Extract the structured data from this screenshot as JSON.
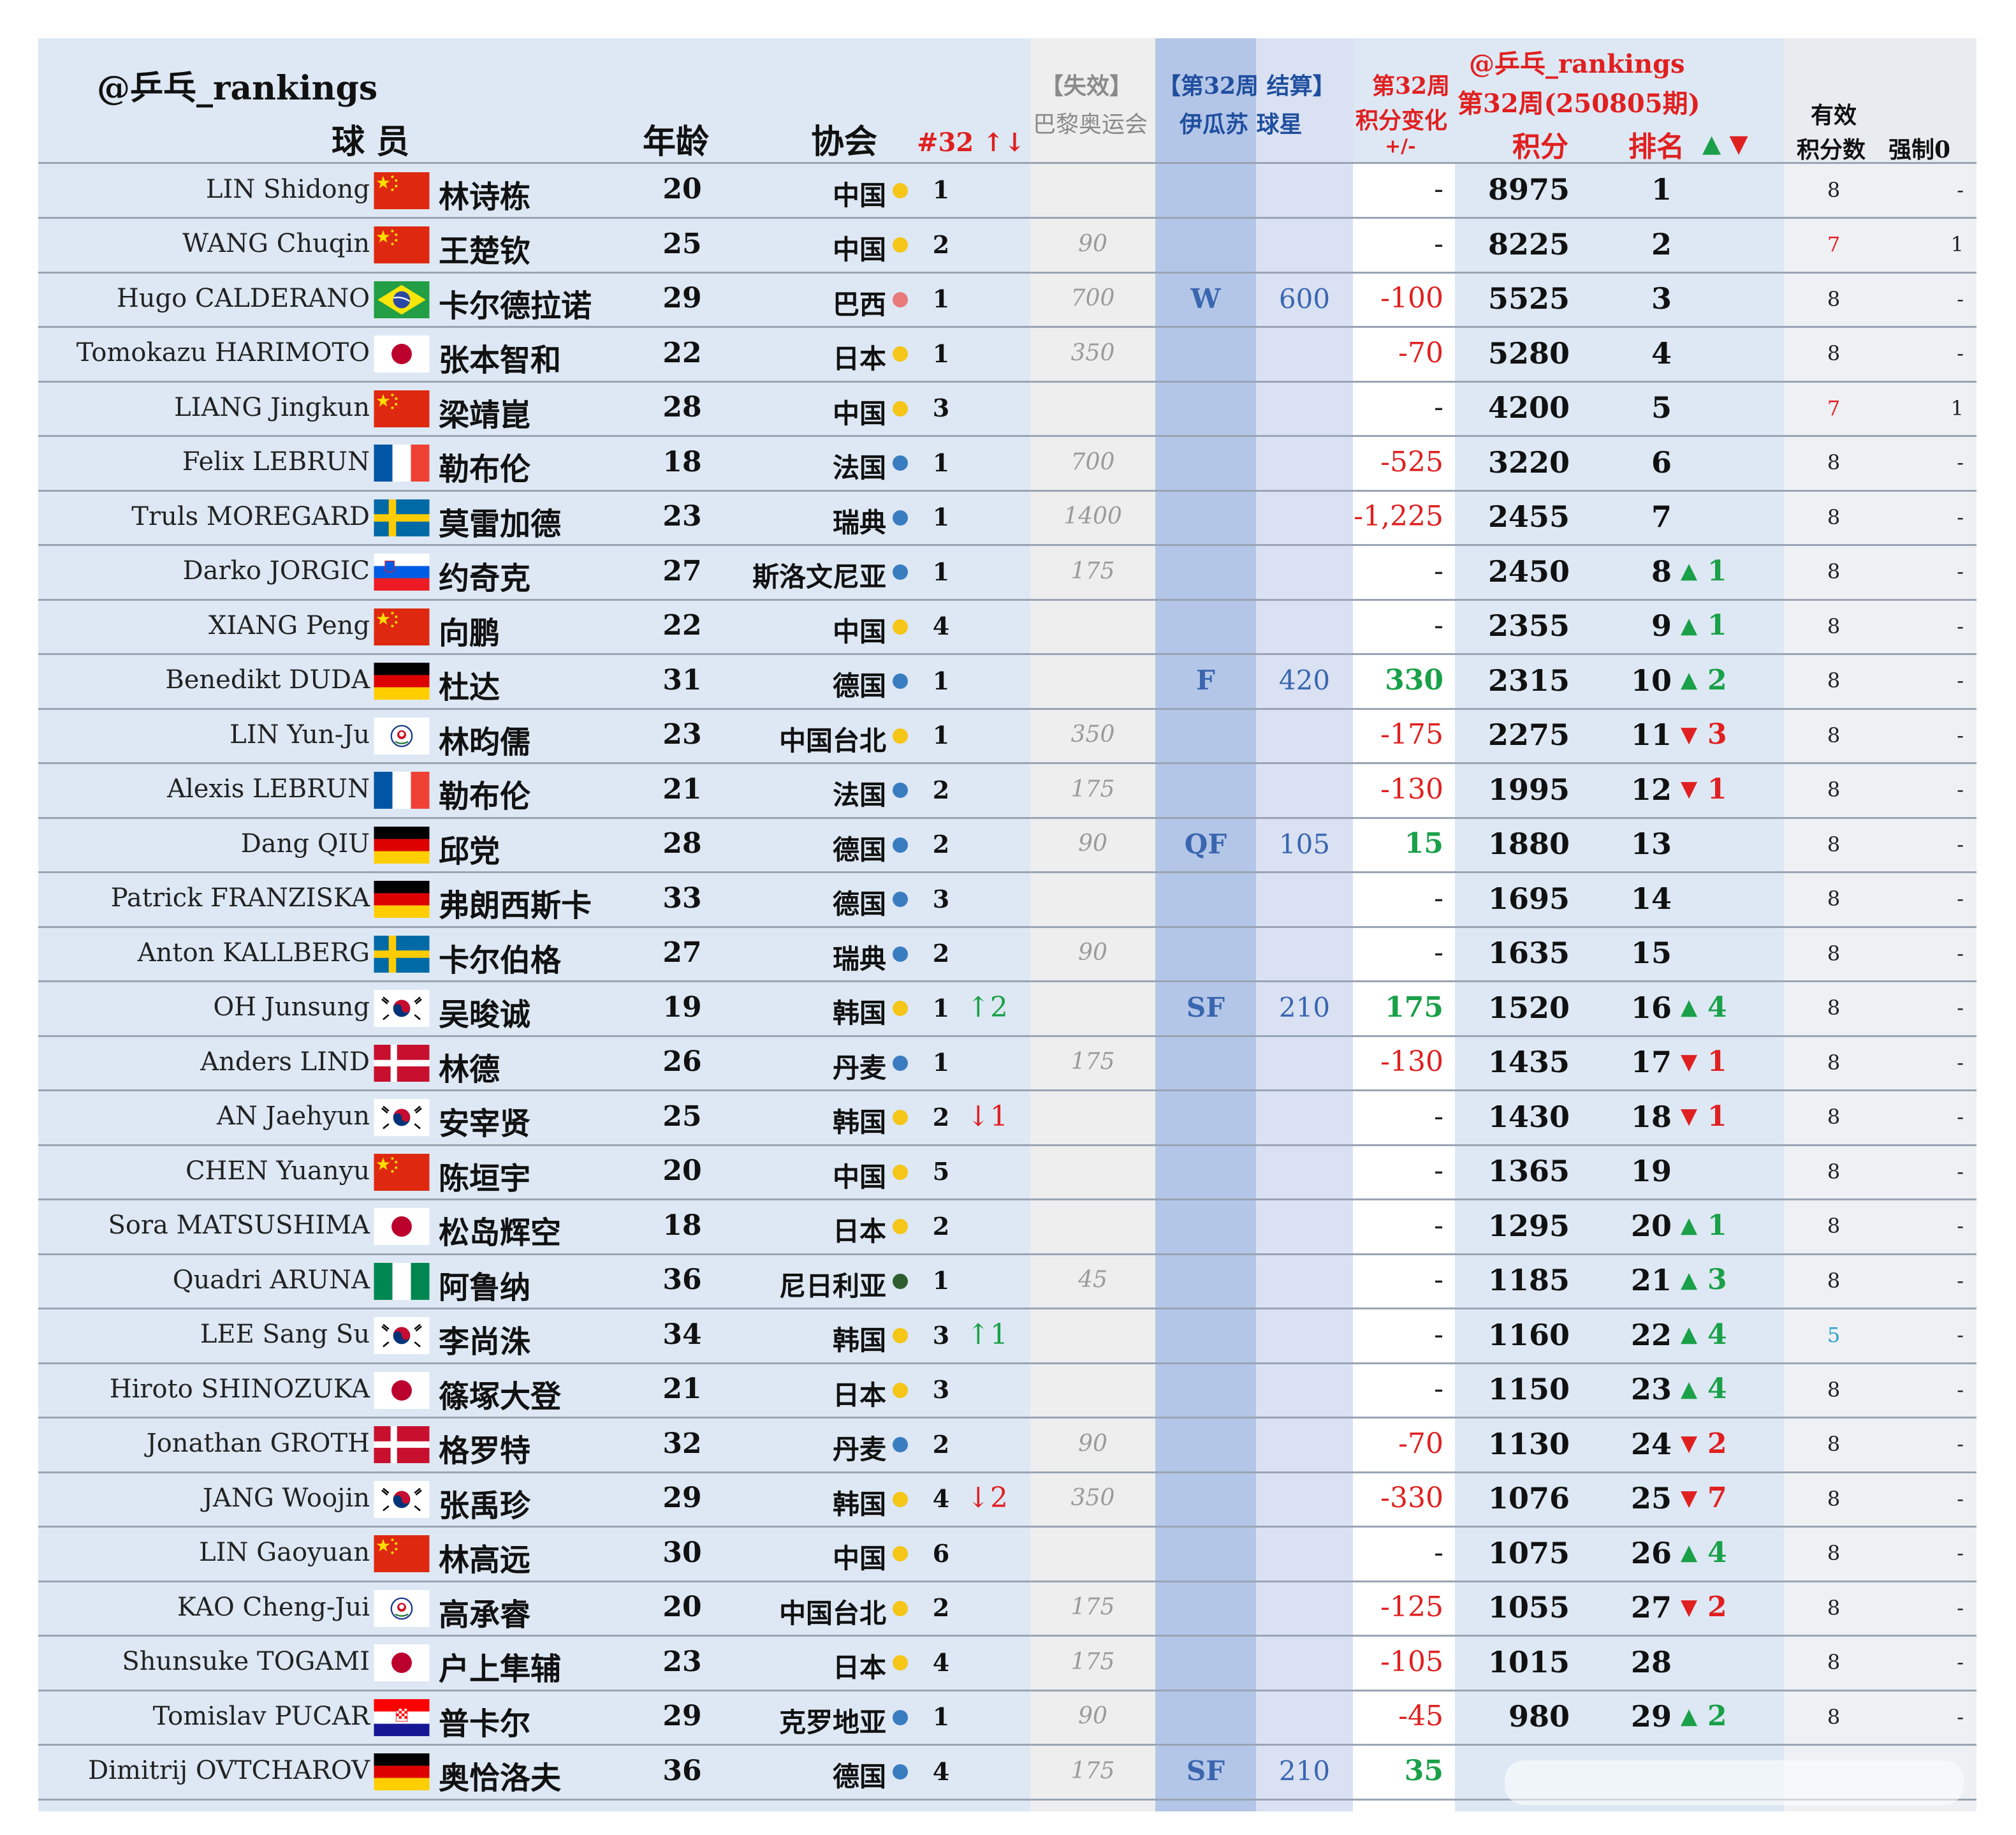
{
  "header": {
    "watermark_left": "@乒乓_rankings",
    "col_player": "球 员",
    "col_age": "年龄",
    "col_assoc": "协会",
    "col_rank_change": "#32 ↑↓",
    "col_expired_top": "【失效】",
    "col_expired_bottom": "巴黎奥运会",
    "col_event_top": "【第32周 结算】",
    "col_event_bottom": "伊瓜苏 球星",
    "col_change_top": "第32周",
    "col_change_mid": "积分变化",
    "col_change_bottom": "+/-",
    "col_week_watermark": "@乒乓_rankings",
    "col_week_title": "第32周(250805期)",
    "col_points": "积分",
    "col_rank": "排名",
    "col_rank_arrows": "▲ ▼",
    "col_valid_top": "有效",
    "col_valid_bottom": "积分数",
    "col_forced": "强制0"
  },
  "colors": {
    "header_bg": "#dde8f4",
    "row_bg": "#dde8f4",
    "expired_bg": "#eeeeee",
    "event_bg": "#b4c6e7",
    "event_bg2": "#d9e1f2",
    "up": "#1aa048",
    "down": "#e02020",
    "china_dot": "#f5c518",
    "europe_dot": "#3a7cc0",
    "brazil_dot": "#e87a7a",
    "nigeria_dot": "#2e5e2e"
  },
  "rows": [
    {
      "en": "LIN Shidong",
      "flag": "china",
      "cn": "林诗栋",
      "age": "20",
      "assoc": "中国",
      "dot": "yellow",
      "nat_rank": "1",
      "nat_change": "",
      "nat_dir": "",
      "expired": "",
      "event_result": "",
      "event_pts": "",
      "change": "-",
      "change_style": "plain",
      "points": "8975",
      "rank": "1",
      "rank_dir": "",
      "rank_delta": "",
      "valid": "8",
      "valid_style": "plain",
      "forced": "-"
    },
    {
      "en": "WANG Chuqin",
      "flag": "china",
      "cn": "王楚钦",
      "age": "25",
      "assoc": "中国",
      "dot": "yellow",
      "nat_rank": "2",
      "nat_change": "",
      "nat_dir": "",
      "expired": "90",
      "event_result": "",
      "event_pts": "",
      "change": "-",
      "change_style": "plain",
      "points": "8225",
      "rank": "2",
      "rank_dir": "",
      "rank_delta": "",
      "valid": "7",
      "valid_style": "red",
      "forced": "1"
    },
    {
      "en": "Hugo CALDERANO",
      "flag": "brazil",
      "cn": "卡尔德拉诺",
      "age": "29",
      "assoc": "巴西",
      "dot": "pink",
      "nat_rank": "1",
      "nat_change": "",
      "nat_dir": "",
      "expired": "700",
      "event_result": "W",
      "event_pts": "600",
      "change": "-100",
      "change_style": "red",
      "points": "5525",
      "rank": "3",
      "rank_dir": "",
      "rank_delta": "",
      "valid": "8",
      "valid_style": "plain",
      "forced": "-"
    },
    {
      "en": "Tomokazu HARIMOTO",
      "flag": "japan",
      "cn": "张本智和",
      "age": "22",
      "assoc": "日本",
      "dot": "yellow",
      "nat_rank": "1",
      "nat_change": "",
      "nat_dir": "",
      "expired": "350",
      "event_result": "",
      "event_pts": "",
      "change": "-70",
      "change_style": "red",
      "points": "5280",
      "rank": "4",
      "rank_dir": "",
      "rank_delta": "",
      "valid": "8",
      "valid_style": "plain",
      "forced": "-"
    },
    {
      "en": "LIANG Jingkun",
      "flag": "china",
      "cn": "梁靖崑",
      "age": "28",
      "assoc": "中国",
      "dot": "yellow",
      "nat_rank": "3",
      "nat_change": "",
      "nat_dir": "",
      "expired": "",
      "event_result": "",
      "event_pts": "",
      "change": "-",
      "change_style": "plain",
      "points": "4200",
      "rank": "5",
      "rank_dir": "",
      "rank_delta": "",
      "valid": "7",
      "valid_style": "red",
      "forced": "1"
    },
    {
      "en": "Felix LEBRUN",
      "flag": "france",
      "cn": "勒布伦",
      "age": "18",
      "assoc": "法国",
      "dot": "blue",
      "nat_rank": "1",
      "nat_change": "",
      "nat_dir": "",
      "expired": "700",
      "event_result": "",
      "event_pts": "",
      "change": "-525",
      "change_style": "red",
      "points": "3220",
      "rank": "6",
      "rank_dir": "",
      "rank_delta": "",
      "valid": "8",
      "valid_style": "plain",
      "forced": "-"
    },
    {
      "en": "Truls MOREGARD",
      "flag": "sweden",
      "cn": "莫雷加德",
      "age": "23",
      "assoc": "瑞典",
      "dot": "blue",
      "nat_rank": "1",
      "nat_change": "",
      "nat_dir": "",
      "expired": "1400",
      "event_result": "",
      "event_pts": "",
      "change": "-1,225",
      "change_style": "red",
      "points": "2455",
      "rank": "7",
      "rank_dir": "",
      "rank_delta": "",
      "valid": "8",
      "valid_style": "plain",
      "forced": "-"
    },
    {
      "en": "Darko JORGIC",
      "flag": "slovenia",
      "cn": "约奇克",
      "age": "27",
      "assoc": "斯洛文尼亚",
      "dot": "blue",
      "nat_rank": "1",
      "nat_change": "",
      "nat_dir": "",
      "expired": "175",
      "event_result": "",
      "event_pts": "",
      "change": "-",
      "change_style": "plain",
      "points": "2450",
      "rank": "8",
      "rank_dir": "up",
      "rank_delta": "1",
      "valid": "8",
      "valid_style": "plain",
      "forced": "-"
    },
    {
      "en": "XIANG Peng",
      "flag": "china",
      "cn": "向鹏",
      "age": "22",
      "assoc": "中国",
      "dot": "yellow",
      "nat_rank": "4",
      "nat_change": "",
      "nat_dir": "",
      "expired": "",
      "event_result": "",
      "event_pts": "",
      "change": "-",
      "change_style": "plain",
      "points": "2355",
      "rank": "9",
      "rank_dir": "up",
      "rank_delta": "1",
      "valid": "8",
      "valid_style": "plain",
      "forced": "-"
    },
    {
      "en": "Benedikt DUDA",
      "flag": "germany",
      "cn": "杜达",
      "age": "31",
      "assoc": "德国",
      "dot": "blue",
      "nat_rank": "1",
      "nat_change": "",
      "nat_dir": "",
      "expired": "",
      "event_result": "F",
      "event_pts": "420",
      "change": "330",
      "change_style": "green",
      "points": "2315",
      "rank": "10",
      "rank_dir": "up",
      "rank_delta": "2",
      "valid": "8",
      "valid_style": "plain",
      "forced": "-"
    },
    {
      "en": "LIN Yun-Ju",
      "flag": "tpe",
      "cn": "林昀儒",
      "age": "23",
      "assoc": "中国台北",
      "dot": "yellow",
      "nat_rank": "1",
      "nat_change": "",
      "nat_dir": "",
      "expired": "350",
      "event_result": "",
      "event_pts": "",
      "change": "-175",
      "change_style": "red",
      "points": "2275",
      "rank": "11",
      "rank_dir": "down",
      "rank_delta": "3",
      "valid": "8",
      "valid_style": "plain",
      "forced": "-"
    },
    {
      "en": "Alexis LEBRUN",
      "flag": "france",
      "cn": "勒布伦",
      "age": "21",
      "assoc": "法国",
      "dot": "blue",
      "nat_rank": "2",
      "nat_change": "",
      "nat_dir": "",
      "expired": "175",
      "event_result": "",
      "event_pts": "",
      "change": "-130",
      "change_style": "red",
      "points": "1995",
      "rank": "12",
      "rank_dir": "down",
      "rank_delta": "1",
      "valid": "8",
      "valid_style": "plain",
      "forced": "-"
    },
    {
      "en": "Dang QIU",
      "flag": "germany",
      "cn": "邱党",
      "age": "28",
      "assoc": "德国",
      "dot": "blue",
      "nat_rank": "2",
      "nat_change": "",
      "nat_dir": "",
      "expired": "90",
      "event_result": "QF",
      "event_pts": "105",
      "change": "15",
      "change_style": "green",
      "points": "1880",
      "rank": "13",
      "rank_dir": "",
      "rank_delta": "",
      "valid": "8",
      "valid_style": "plain",
      "forced": "-"
    },
    {
      "en": "Patrick FRANZISKA",
      "flag": "germany",
      "cn": "弗朗西斯卡",
      "age": "33",
      "assoc": "德国",
      "dot": "blue",
      "nat_rank": "3",
      "nat_change": "",
      "nat_dir": "",
      "expired": "",
      "event_result": "",
      "event_pts": "",
      "change": "-",
      "change_style": "plain",
      "points": "1695",
      "rank": "14",
      "rank_dir": "",
      "rank_delta": "",
      "valid": "8",
      "valid_style": "plain",
      "forced": "-"
    },
    {
      "en": "Anton KALLBERG",
      "flag": "sweden",
      "cn": "卡尔伯格",
      "age": "27",
      "assoc": "瑞典",
      "dot": "blue",
      "nat_rank": "2",
      "nat_change": "",
      "nat_dir": "",
      "expired": "90",
      "event_result": "",
      "event_pts": "",
      "change": "-",
      "change_style": "plain",
      "points": "1635",
      "rank": "15",
      "rank_dir": "",
      "rank_delta": "",
      "valid": "8",
      "valid_style": "plain",
      "forced": "-"
    },
    {
      "en": "OH Junsung",
      "flag": "korea",
      "cn": "吴晙诚",
      "age": "19",
      "assoc": "韩国",
      "dot": "yellow",
      "nat_rank": "1",
      "nat_change": "↑2",
      "nat_dir": "up",
      "expired": "",
      "event_result": "SF",
      "event_pts": "210",
      "change": "175",
      "change_style": "green",
      "points": "1520",
      "rank": "16",
      "rank_dir": "up",
      "rank_delta": "4",
      "valid": "8",
      "valid_style": "plain",
      "forced": "-"
    },
    {
      "en": "Anders LIND",
      "flag": "denmark",
      "cn": "林德",
      "age": "26",
      "assoc": "丹麦",
      "dot": "blue",
      "nat_rank": "1",
      "nat_change": "",
      "nat_dir": "",
      "expired": "175",
      "event_result": "",
      "event_pts": "",
      "change": "-130",
      "change_style": "red",
      "points": "1435",
      "rank": "17",
      "rank_dir": "down",
      "rank_delta": "1",
      "valid": "8",
      "valid_style": "plain",
      "forced": "-"
    },
    {
      "en": "AN Jaehyun",
      "flag": "korea",
      "cn": "安宰贤",
      "age": "25",
      "assoc": "韩国",
      "dot": "yellow",
      "nat_rank": "2",
      "nat_change": "↓1",
      "nat_dir": "down",
      "expired": "",
      "event_result": "",
      "event_pts": "",
      "change": "-",
      "change_style": "plain",
      "points": "1430",
      "rank": "18",
      "rank_dir": "down",
      "rank_delta": "1",
      "valid": "8",
      "valid_style": "plain",
      "forced": "-"
    },
    {
      "en": "CHEN Yuanyu",
      "flag": "china",
      "cn": "陈垣宇",
      "age": "20",
      "assoc": "中国",
      "dot": "yellow",
      "nat_rank": "5",
      "nat_change": "",
      "nat_dir": "",
      "expired": "",
      "event_result": "",
      "event_pts": "",
      "change": "-",
      "change_style": "plain",
      "points": "1365",
      "rank": "19",
      "rank_dir": "",
      "rank_delta": "",
      "valid": "8",
      "valid_style": "plain",
      "forced": "-"
    },
    {
      "en": "Sora MATSUSHIMA",
      "flag": "japan",
      "cn": "松岛辉空",
      "age": "18",
      "assoc": "日本",
      "dot": "yellow",
      "nat_rank": "2",
      "nat_change": "",
      "nat_dir": "",
      "expired": "",
      "event_result": "",
      "event_pts": "",
      "change": "-",
      "change_style": "plain",
      "points": "1295",
      "rank": "20",
      "rank_dir": "up",
      "rank_delta": "1",
      "valid": "8",
      "valid_style": "plain",
      "forced": "-"
    },
    {
      "en": "Quadri ARUNA",
      "flag": "nigeria",
      "cn": "阿鲁纳",
      "age": "36",
      "assoc": "尼日利亚",
      "dot": "darkgreen",
      "nat_rank": "1",
      "nat_change": "",
      "nat_dir": "",
      "expired": "45",
      "event_result": "",
      "event_pts": "",
      "change": "-",
      "change_style": "plain",
      "points": "1185",
      "rank": "21",
      "rank_dir": "up",
      "rank_delta": "3",
      "valid": "8",
      "valid_style": "plain",
      "forced": "-"
    },
    {
      "en": "LEE Sang Su",
      "flag": "korea",
      "cn": "李尚洙",
      "age": "34",
      "assoc": "韩国",
      "dot": "yellow",
      "nat_rank": "3",
      "nat_change": "↑1",
      "nat_dir": "up",
      "expired": "",
      "event_result": "",
      "event_pts": "",
      "change": "-",
      "change_style": "plain",
      "points": "1160",
      "rank": "22",
      "rank_dir": "up",
      "rank_delta": "4",
      "valid": "5",
      "valid_style": "teal",
      "forced": "-"
    },
    {
      "en": "Hiroto SHINOZUKA",
      "flag": "japan",
      "cn": "篠塚大登",
      "age": "21",
      "assoc": "日本",
      "dot": "yellow",
      "nat_rank": "3",
      "nat_change": "",
      "nat_dir": "",
      "expired": "",
      "event_result": "",
      "event_pts": "",
      "change": "-",
      "change_style": "plain",
      "points": "1150",
      "rank": "23",
      "rank_dir": "up",
      "rank_delta": "4",
      "valid": "8",
      "valid_style": "plain",
      "forced": "-"
    },
    {
      "en": "Jonathan GROTH",
      "flag": "denmark",
      "cn": "格罗特",
      "age": "32",
      "assoc": "丹麦",
      "dot": "blue",
      "nat_rank": "2",
      "nat_change": "",
      "nat_dir": "",
      "expired": "90",
      "event_result": "",
      "event_pts": "",
      "change": "-70",
      "change_style": "red",
      "points": "1130",
      "rank": "24",
      "rank_dir": "down",
      "rank_delta": "2",
      "valid": "8",
      "valid_style": "plain",
      "forced": "-"
    },
    {
      "en": "JANG Woojin",
      "flag": "korea",
      "cn": "张禹珍",
      "age": "29",
      "assoc": "韩国",
      "dot": "yellow",
      "nat_rank": "4",
      "nat_change": "↓2",
      "nat_dir": "down",
      "expired": "350",
      "event_result": "",
      "event_pts": "",
      "change": "-330",
      "change_style": "red",
      "points": "1076",
      "rank": "25",
      "rank_dir": "down",
      "rank_delta": "7",
      "valid": "8",
      "valid_style": "plain",
      "forced": "-"
    },
    {
      "en": "LIN Gaoyuan",
      "flag": "china",
      "cn": "林高远",
      "age": "30",
      "assoc": "中国",
      "dot": "yellow",
      "nat_rank": "6",
      "nat_change": "",
      "nat_dir": "",
      "expired": "",
      "event_result": "",
      "event_pts": "",
      "change": "-",
      "change_style": "plain",
      "points": "1075",
      "rank": "26",
      "rank_dir": "up",
      "rank_delta": "4",
      "valid": "8",
      "valid_style": "plain",
      "forced": "-"
    },
    {
      "en": "KAO Cheng-Jui",
      "flag": "tpe",
      "cn": "高承睿",
      "age": "20",
      "assoc": "中国台北",
      "dot": "yellow",
      "nat_rank": "2",
      "nat_change": "",
      "nat_dir": "",
      "expired": "175",
      "event_result": "",
      "event_pts": "",
      "change": "-125",
      "change_style": "red",
      "points": "1055",
      "rank": "27",
      "rank_dir": "down",
      "rank_delta": "2",
      "valid": "8",
      "valid_style": "plain",
      "forced": "-"
    },
    {
      "en": "Shunsuke TOGAMI",
      "flag": "japan",
      "cn": "户上隼辅",
      "age": "23",
      "assoc": "日本",
      "dot": "yellow",
      "nat_rank": "4",
      "nat_change": "",
      "nat_dir": "",
      "expired": "175",
      "event_result": "",
      "event_pts": "",
      "change": "-105",
      "change_style": "red",
      "points": "1015",
      "rank": "28",
      "rank_dir": "",
      "rank_delta": "",
      "valid": "8",
      "valid_style": "plain",
      "forced": "-"
    },
    {
      "en": "Tomislav PUCAR",
      "flag": "croatia",
      "cn": "普卡尔",
      "age": "29",
      "assoc": "克罗地亚",
      "dot": "blue",
      "nat_rank": "1",
      "nat_change": "",
      "nat_dir": "",
      "expired": "90",
      "event_result": "",
      "event_pts": "",
      "change": "-45",
      "change_style": "red",
      "points": "980",
      "rank": "29",
      "rank_dir": "up",
      "rank_delta": "2",
      "valid": "8",
      "valid_style": "plain",
      "forced": "-"
    },
    {
      "en": "Dimitrij OVTCHAROV",
      "flag": "germany",
      "cn": "奥恰洛夫",
      "age": "36",
      "assoc": "德国",
      "dot": "blue",
      "nat_rank": "4",
      "nat_change": "",
      "nat_dir": "",
      "expired": "175",
      "event_result": "SF",
      "event_pts": "210",
      "change": "35",
      "change_style": "green",
      "points": "",
      "rank": "",
      "rank_dir": "",
      "rank_delta": "",
      "valid": "",
      "valid_style": "plain",
      "forced": ""
    }
  ]
}
